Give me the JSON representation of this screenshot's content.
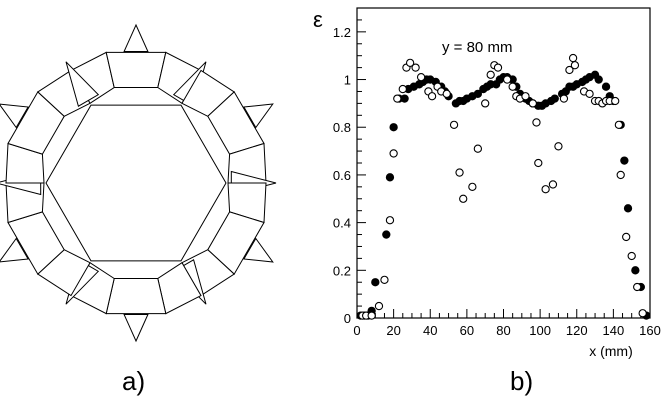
{
  "panel_a": {
    "label": "a)"
  },
  "panel_b": {
    "label": "b)"
  },
  "chart_data": {
    "type": "scatter",
    "annotation": "y = 80 mm",
    "xlabel": "x (mm)",
    "ylabel": "ε",
    "xlim": [
      0,
      160
    ],
    "ylim": [
      0,
      1.3
    ],
    "x_ticks": [
      0,
      20,
      40,
      60,
      80,
      100,
      120,
      140,
      160
    ],
    "y_ticks": [
      0,
      0.2,
      0.4,
      0.6,
      0.8,
      1,
      1.2
    ],
    "grid": false,
    "series": [
      {
        "marker": "filled-circle",
        "points": [
          [
            2,
            0.01
          ],
          [
            4,
            0.01
          ],
          [
            6,
            0.01
          ],
          [
            8,
            0.03
          ],
          [
            10,
            0.15
          ],
          [
            16,
            0.35
          ],
          [
            18,
            0.59
          ],
          [
            20,
            0.8
          ],
          [
            23,
            0.92
          ],
          [
            26,
            0.92
          ],
          [
            28,
            0.96
          ],
          [
            31,
            0.97
          ],
          [
            34,
            0.98
          ],
          [
            36,
            0.99
          ],
          [
            38,
            1.0
          ],
          [
            40,
            1.0
          ],
          [
            43,
            0.99
          ],
          [
            46,
            0.97
          ],
          [
            48,
            0.95
          ],
          [
            50,
            0.93
          ],
          [
            54,
            0.9
          ],
          [
            56,
            0.91
          ],
          [
            58,
            0.91
          ],
          [
            60,
            0.92
          ],
          [
            63,
            0.93
          ],
          [
            66,
            0.94
          ],
          [
            69,
            0.96
          ],
          [
            71,
            0.97
          ],
          [
            73,
            0.98
          ],
          [
            76,
            0.98
          ],
          [
            78,
            1.0
          ],
          [
            80,
            1.01
          ],
          [
            82,
            1.01
          ],
          [
            85,
            1.0
          ],
          [
            87,
            0.97
          ],
          [
            89,
            0.94
          ],
          [
            92,
            0.92
          ],
          [
            94,
            0.91
          ],
          [
            96,
            0.9
          ],
          [
            99,
            0.89
          ],
          [
            101,
            0.89
          ],
          [
            103,
            0.9
          ],
          [
            106,
            0.91
          ],
          [
            108,
            0.92
          ],
          [
            112,
            0.94
          ],
          [
            114,
            0.95
          ],
          [
            116,
            0.97
          ],
          [
            118,
            0.97
          ],
          [
            120,
            0.98
          ],
          [
            123,
            0.99
          ],
          [
            125,
            1.0
          ],
          [
            127,
            1.01
          ],
          [
            130,
            1.02
          ],
          [
            132,
            1.0
          ],
          [
            136,
            0.97
          ],
          [
            138,
            0.93
          ],
          [
            140,
            0.91
          ],
          [
            144,
            0.81
          ],
          [
            146,
            0.66
          ],
          [
            148,
            0.46
          ],
          [
            152,
            0.2
          ],
          [
            155,
            0.13
          ],
          [
            158,
            0.01
          ]
        ]
      },
      {
        "marker": "open-circle",
        "points": [
          [
            3,
            0.01
          ],
          [
            5,
            0.01
          ],
          [
            8,
            0.01
          ],
          [
            12,
            0.05
          ],
          [
            15,
            0.16
          ],
          [
            18,
            0.41
          ],
          [
            20,
            0.69
          ],
          [
            22,
            0.92
          ],
          [
            25,
            0.96
          ],
          [
            27,
            1.05
          ],
          [
            29,
            1.07
          ],
          [
            32,
            1.05
          ],
          [
            35,
            1.01
          ],
          [
            39,
            0.95
          ],
          [
            41,
            0.93
          ],
          [
            44,
            0.97
          ],
          [
            46,
            0.95
          ],
          [
            49,
            0.94
          ],
          [
            53,
            0.81
          ],
          [
            56,
            0.61
          ],
          [
            58,
            0.5
          ],
          [
            63,
            0.55
          ],
          [
            66,
            0.71
          ],
          [
            70,
            0.9
          ],
          [
            73,
            1.02
          ],
          [
            75,
            1.06
          ],
          [
            77,
            1.05
          ],
          [
            82,
            1.0
          ],
          [
            85,
            0.97
          ],
          [
            87,
            0.93
          ],
          [
            89,
            0.92
          ],
          [
            92,
            0.93
          ],
          [
            96,
            0.9
          ],
          [
            98,
            0.82
          ],
          [
            99,
            0.65
          ],
          [
            103,
            0.54
          ],
          [
            107,
            0.56
          ],
          [
            110,
            0.72
          ],
          [
            113,
            0.92
          ],
          [
            116,
            1.04
          ],
          [
            118,
            1.09
          ],
          [
            119,
            1.06
          ],
          [
            124,
            0.95
          ],
          [
            127,
            0.94
          ],
          [
            130,
            0.91
          ],
          [
            132,
            0.91
          ],
          [
            134,
            0.9
          ],
          [
            136,
            0.91
          ],
          [
            138,
            0.91
          ],
          [
            141,
            0.91
          ],
          [
            143,
            0.81
          ],
          [
            144,
            0.6
          ],
          [
            147,
            0.34
          ],
          [
            150,
            0.26
          ],
          [
            153,
            0.13
          ],
          [
            156,
            0.02
          ]
        ]
      }
    ]
  }
}
